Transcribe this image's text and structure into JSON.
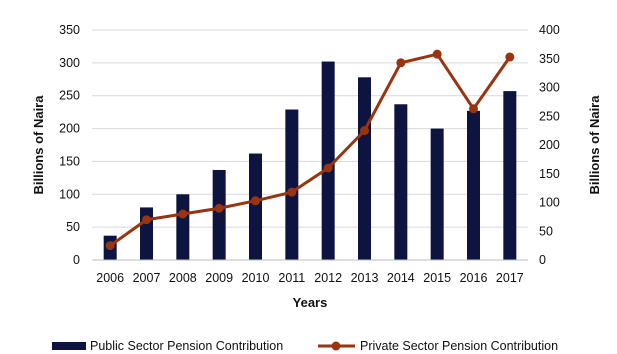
{
  "chart_data": {
    "type": "bar",
    "categories": [
      "2006",
      "2007",
      "2008",
      "2009",
      "2010",
      "2011",
      "2012",
      "2013",
      "2014",
      "2015",
      "2016",
      "2017"
    ],
    "series": [
      {
        "name": "Public Sector Pension Contribution",
        "type": "bar",
        "axis": "left",
        "color": "#0d1440",
        "values": [
          37,
          80,
          100,
          137,
          162,
          229,
          302,
          278,
          237,
          200,
          227,
          257
        ]
      },
      {
        "name": "Private Sector Pension Contribution",
        "type": "line",
        "axis": "right",
        "color": "#9a3310",
        "values": [
          25,
          70,
          80,
          90,
          103,
          118,
          160,
          225,
          343,
          358,
          263,
          353
        ]
      }
    ],
    "xlabel": "Years",
    "ylabel": "Billions of Naira",
    "y2label": "Billions of Naira",
    "ylim": [
      0,
      350
    ],
    "y2lim": [
      0,
      400
    ],
    "yticks": [
      "0",
      "50",
      "100",
      "150",
      "200",
      "250",
      "300",
      "350"
    ],
    "y2ticks": [
      "0",
      "50",
      "100",
      "150",
      "200",
      "250",
      "300",
      "350",
      "400"
    ],
    "grid": true,
    "legend": "bottom"
  }
}
